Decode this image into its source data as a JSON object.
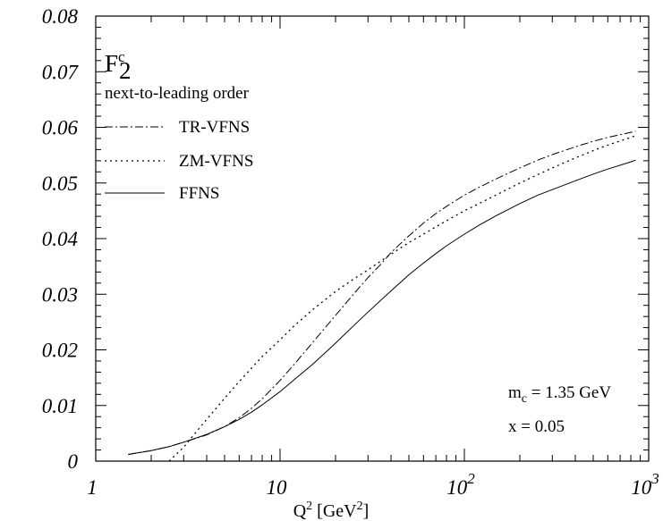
{
  "chart_data": {
    "type": "line",
    "title": "F",
    "title_sup": "c",
    "title_sub": "2",
    "subtitle": "next-to-leading order",
    "xlabel": "Q",
    "xlabel_sup": "2",
    "xlabel_unit_open": " [GeV",
    "xlabel_unit_sup": "2",
    "xlabel_unit_close": "]",
    "xscale": "log",
    "xlim": [
      1,
      1000
    ],
    "ylim": [
      0,
      0.08
    ],
    "x_ticks": [
      {
        "value": 1,
        "base": "1",
        "exp": ""
      },
      {
        "value": 10,
        "base": "10",
        "exp": ""
      },
      {
        "value": 100,
        "base": "10",
        "exp": "2"
      },
      {
        "value": 1000,
        "base": "10",
        "exp": "3"
      }
    ],
    "y_ticks": [
      {
        "value": 0,
        "label": "0"
      },
      {
        "value": 0.01,
        "label": "0.01"
      },
      {
        "value": 0.02,
        "label": "0.02"
      },
      {
        "value": 0.03,
        "label": "0.03"
      },
      {
        "value": 0.04,
        "label": "0.04"
      },
      {
        "value": 0.05,
        "label": "0.05"
      },
      {
        "value": 0.06,
        "label": "0.06"
      },
      {
        "value": 0.07,
        "label": "0.07"
      },
      {
        "value": 0.08,
        "label": "0.08"
      }
    ],
    "grid": false,
    "legend_placement": "top-left",
    "series": [
      {
        "name": "TR-VFNS",
        "dash": "dashdot",
        "x": [
          1.5,
          2,
          2.5,
          3,
          4,
          5,
          6,
          7,
          8,
          10,
          12,
          15,
          20,
          25,
          30,
          35,
          40,
          50,
          60,
          70,
          80,
          100,
          120,
          150,
          200,
          250,
          300,
          400,
          500,
          600,
          800,
          850
        ],
        "y": [
          0.0012,
          0.0019,
          0.0026,
          0.0034,
          0.0047,
          0.0062,
          0.0078,
          0.0095,
          0.0112,
          0.0145,
          0.0175,
          0.0213,
          0.0262,
          0.03,
          0.033,
          0.0353,
          0.0375,
          0.0405,
          0.0428,
          0.0445,
          0.0458,
          0.0478,
          0.0492,
          0.0508,
          0.0527,
          0.0541,
          0.0551,
          0.0565,
          0.0575,
          0.0582,
          0.0591,
          0.0593
        ]
      },
      {
        "name": "ZM-VFNS",
        "dash": "dotted",
        "x": [
          2.5,
          3,
          3.5,
          4,
          5,
          6,
          7,
          8,
          10,
          12,
          15,
          20,
          25,
          30,
          40,
          50,
          60,
          70,
          80,
          100,
          120,
          150,
          200,
          250,
          300,
          400,
          500,
          600,
          800,
          850
        ],
        "y": [
          0.0,
          0.0025,
          0.0052,
          0.0075,
          0.0113,
          0.0143,
          0.0167,
          0.0188,
          0.0218,
          0.0244,
          0.0272,
          0.0305,
          0.0327,
          0.0344,
          0.0372,
          0.0393,
          0.0408,
          0.0421,
          0.0432,
          0.045,
          0.0463,
          0.0479,
          0.05,
          0.0515,
          0.0527,
          0.0545,
          0.0558,
          0.0568,
          0.0582,
          0.0585
        ]
      },
      {
        "name": "FFNS",
        "dash": "solid",
        "x": [
          1.5,
          2,
          2.5,
          3,
          4,
          5,
          6,
          7,
          8,
          10,
          12,
          15,
          20,
          25,
          30,
          40,
          50,
          60,
          70,
          80,
          100,
          120,
          150,
          200,
          250,
          300,
          400,
          500,
          600,
          800,
          850
        ],
        "y": [
          0.0012,
          0.0019,
          0.0026,
          0.0034,
          0.0048,
          0.0062,
          0.0075,
          0.0088,
          0.0101,
          0.0125,
          0.0147,
          0.0174,
          0.0212,
          0.0243,
          0.0268,
          0.0306,
          0.0335,
          0.0356,
          0.0373,
          0.0387,
          0.0408,
          0.0424,
          0.0442,
          0.0463,
          0.0478,
          0.0488,
          0.0504,
          0.0516,
          0.0525,
          0.0538,
          0.0541
        ]
      }
    ],
    "annotations": {
      "mass_prefix": "m",
      "mass_sub": "c",
      "mass_value": " = 1.35 GeV",
      "x_value": "x = 0.05"
    }
  }
}
